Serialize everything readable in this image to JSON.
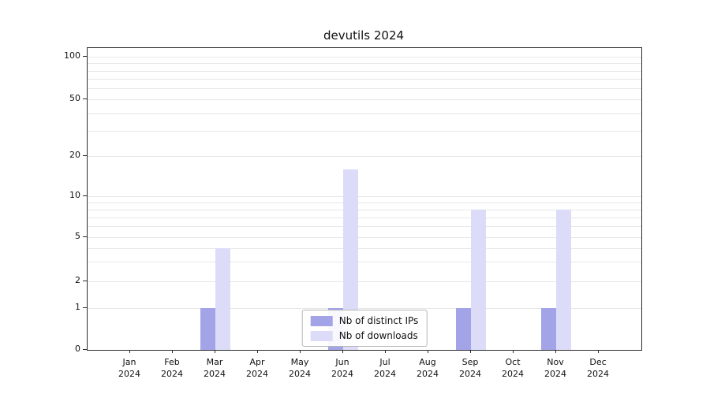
{
  "title": "devutils 2024",
  "chart_data": {
    "type": "bar",
    "title": "devutils 2024",
    "yscale": "symlog",
    "categories": [
      "Jan 2024",
      "Feb 2024",
      "Mar 2024",
      "Apr 2024",
      "May 2024",
      "Jun 2024",
      "Jul 2024",
      "Aug 2024",
      "Sep 2024",
      "Oct 2024",
      "Nov 2024",
      "Dec 2024"
    ],
    "series": [
      {
        "name": "Nb of distinct IPs",
        "color": "#a3a3e8",
        "values": [
          0,
          0,
          1,
          0,
          0,
          1,
          0,
          0,
          1,
          0,
          1,
          0
        ]
      },
      {
        "name": "Nb of downloads",
        "color": "#dcdcf8",
        "values": [
          0,
          0,
          4,
          0,
          0,
          16,
          0,
          0,
          8,
          0,
          8,
          0
        ]
      }
    ],
    "yticks": [
      0,
      1,
      2,
      5,
      10,
      20,
      50,
      100
    ],
    "ylim": [
      0,
      110
    ],
    "grid": "horizontal-log-minor",
    "legend_position": "lower center"
  }
}
